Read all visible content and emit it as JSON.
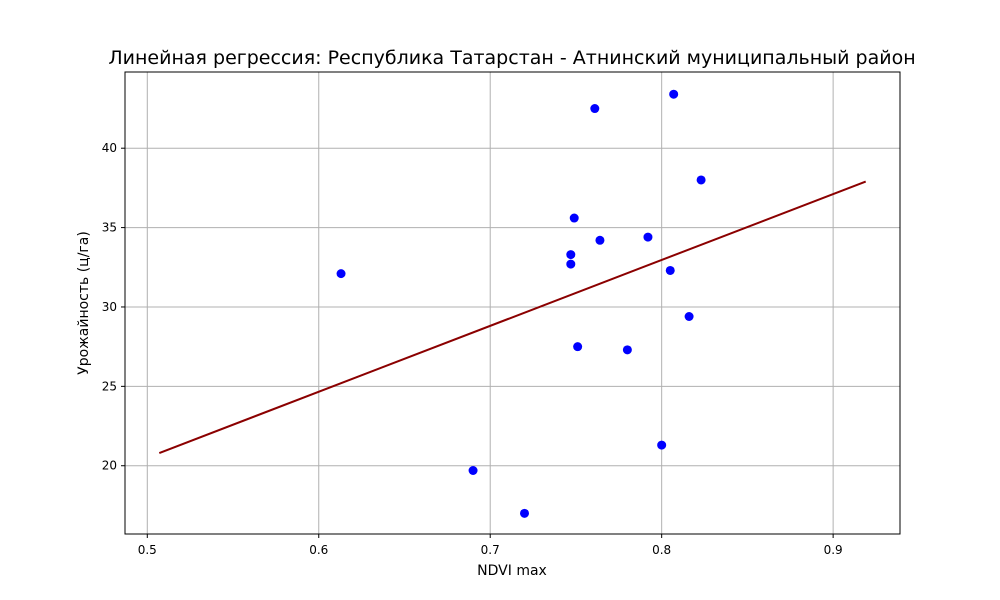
{
  "chart_data": {
    "type": "scatter",
    "title": "Линейная регрессия: Республика Татарстан - Атнинский муниципальный район",
    "xlabel": "NDVI max",
    "ylabel": "Урожайность (ц/га)",
    "xlim": [
      0.487,
      0.939
    ],
    "ylim": [
      15.7,
      44.8
    ],
    "grid": true,
    "x_ticks": [
      0.5,
      0.6,
      0.7,
      0.8,
      0.9
    ],
    "x_tick_labels": [
      "0.5",
      "0.6",
      "0.7",
      "0.8",
      "0.9"
    ],
    "y_ticks": [
      20,
      25,
      30,
      35,
      40
    ],
    "y_tick_labels": [
      "20",
      "25",
      "30",
      "35",
      "40"
    ],
    "series": [
      {
        "type": "scatter",
        "color": "#0000ff",
        "points": [
          {
            "x": 0.613,
            "y": 32.1
          },
          {
            "x": 0.69,
            "y": 19.7
          },
          {
            "x": 0.72,
            "y": 17.0
          },
          {
            "x": 0.747,
            "y": 33.3
          },
          {
            "x": 0.747,
            "y": 32.7
          },
          {
            "x": 0.749,
            "y": 35.6
          },
          {
            "x": 0.751,
            "y": 27.5
          },
          {
            "x": 0.761,
            "y": 42.5
          },
          {
            "x": 0.764,
            "y": 34.2
          },
          {
            "x": 0.78,
            "y": 27.3
          },
          {
            "x": 0.792,
            "y": 34.4
          },
          {
            "x": 0.8,
            "y": 21.3
          },
          {
            "x": 0.805,
            "y": 32.3
          },
          {
            "x": 0.807,
            "y": 43.4
          },
          {
            "x": 0.816,
            "y": 29.4
          },
          {
            "x": 0.823,
            "y": 38.0
          }
        ]
      },
      {
        "type": "line",
        "color": "#8b0000",
        "x": [
          0.507,
          0.919
        ],
        "y": [
          20.8,
          37.9
        ]
      }
    ]
  }
}
